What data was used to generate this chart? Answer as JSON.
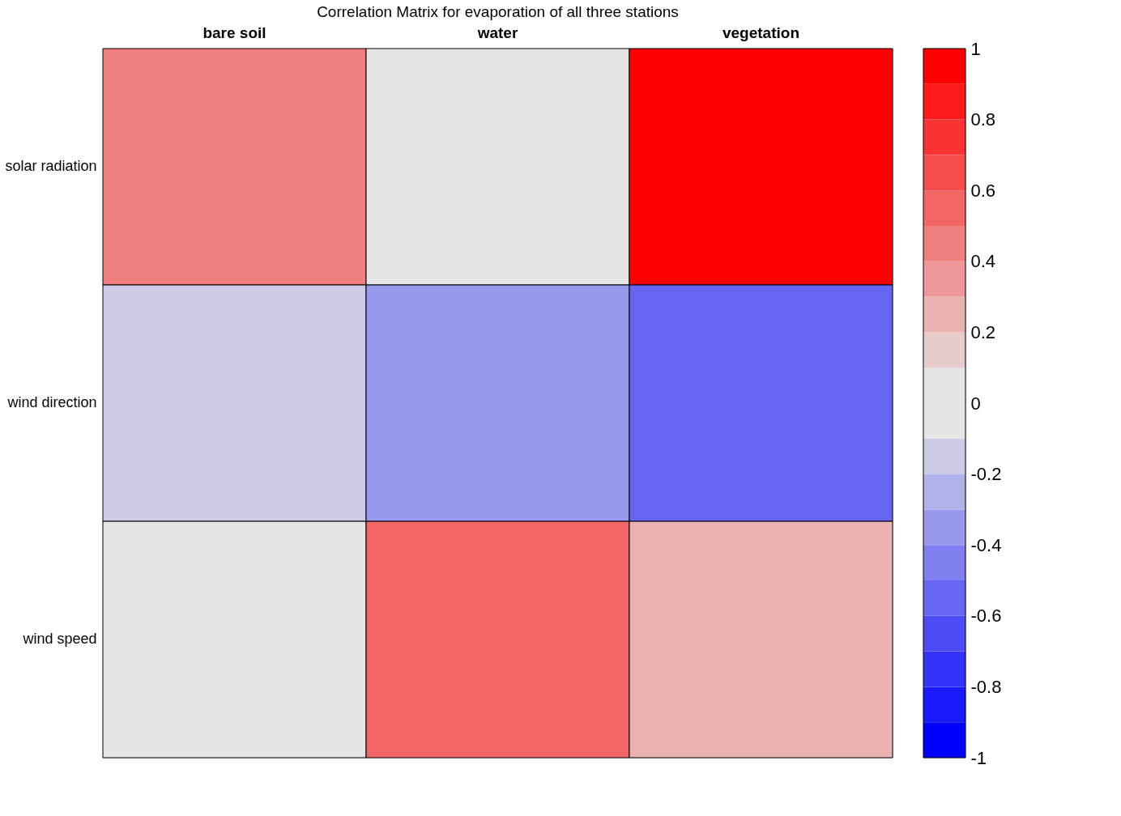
{
  "chart_data": {
    "type": "heatmap",
    "title": "Correlation Matrix for evaporation of all three stations",
    "categories": [
      "bare soil",
      "water",
      "vegetation"
    ],
    "y_categories": [
      "solar radiation",
      "wind direction",
      "wind speed"
    ],
    "cells": [
      [
        0.45,
        0.0,
        0.95
      ],
      [
        -0.15,
        -0.35,
        -0.55
      ],
      [
        0.0,
        0.55,
        0.25
      ]
    ],
    "clim": [
      -1,
      1
    ],
    "cticks": [
      -1,
      -0.8,
      -0.6,
      -0.4,
      -0.2,
      0,
      0.2,
      0.4,
      0.6,
      0.8,
      1
    ]
  }
}
